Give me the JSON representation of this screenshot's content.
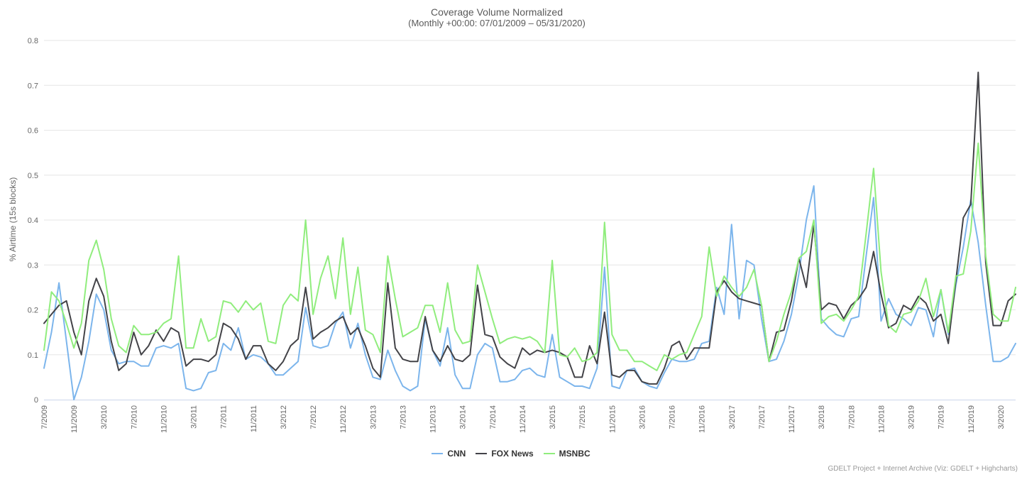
{
  "chart_data": {
    "type": "line",
    "title": "Coverage Volume Normalized",
    "subtitle": "(Monthly +00:00: 07/01/2009 – 05/31/2020)",
    "ylabel": "% Airtime (15s blocks)",
    "ylim": [
      0,
      0.8
    ],
    "ytick_step": 0.1,
    "ytick_labels": [
      "0",
      "0.1",
      "0.2",
      "0.3",
      "0.4",
      "0.5",
      "0.6",
      "0.7",
      "0.8"
    ],
    "grid": true,
    "legend_position": "bottom-center",
    "x_tick_every": 4,
    "axis_line_color": "#ccd6eb",
    "grid_color": "#e6e6e6",
    "label_color": "#666666",
    "categories": [
      "7/2009",
      "8/2009",
      "9/2009",
      "10/2009",
      "11/2009",
      "12/2009",
      "1/2010",
      "2/2010",
      "3/2010",
      "4/2010",
      "5/2010",
      "6/2010",
      "7/2010",
      "8/2010",
      "9/2010",
      "10/2010",
      "11/2010",
      "12/2010",
      "1/2011",
      "2/2011",
      "3/2011",
      "4/2011",
      "5/2011",
      "6/2011",
      "7/2011",
      "8/2011",
      "9/2011",
      "10/2011",
      "11/2011",
      "12/2011",
      "1/2012",
      "2/2012",
      "3/2012",
      "4/2012",
      "5/2012",
      "6/2012",
      "7/2012",
      "8/2012",
      "9/2012",
      "10/2012",
      "11/2012",
      "12/2012",
      "1/2013",
      "2/2013",
      "3/2013",
      "4/2013",
      "5/2013",
      "6/2013",
      "7/2013",
      "8/2013",
      "9/2013",
      "10/2013",
      "11/2013",
      "12/2013",
      "1/2014",
      "2/2014",
      "3/2014",
      "4/2014",
      "5/2014",
      "6/2014",
      "7/2014",
      "8/2014",
      "9/2014",
      "10/2014",
      "11/2014",
      "12/2014",
      "1/2015",
      "2/2015",
      "3/2015",
      "4/2015",
      "5/2015",
      "6/2015",
      "7/2015",
      "8/2015",
      "9/2015",
      "10/2015",
      "11/2015",
      "12/2015",
      "1/2016",
      "2/2016",
      "3/2016",
      "4/2016",
      "5/2016",
      "6/2016",
      "7/2016",
      "8/2016",
      "9/2016",
      "10/2016",
      "11/2016",
      "12/2016",
      "1/2017",
      "2/2017",
      "3/2017",
      "4/2017",
      "5/2017",
      "6/2017",
      "7/2017",
      "8/2017",
      "9/2017",
      "10/2017",
      "11/2017",
      "12/2017",
      "1/2018",
      "2/2018",
      "3/2018",
      "4/2018",
      "5/2018",
      "6/2018",
      "7/2018",
      "8/2018",
      "9/2018",
      "10/2018",
      "11/2018",
      "12/2018",
      "1/2019",
      "2/2019",
      "3/2019",
      "4/2019",
      "5/2019",
      "6/2019",
      "7/2019",
      "8/2019",
      "9/2019",
      "10/2019",
      "11/2019",
      "12/2019",
      "1/2020",
      "2/2020",
      "3/2020",
      "4/2020",
      "5/2020"
    ],
    "series": [
      {
        "name": "CNN",
        "color": "#7cb5ec",
        "values": [
          0.07,
          0.15,
          0.26,
          0.13,
          0.0,
          0.05,
          0.13,
          0.235,
          0.2,
          0.11,
          0.08,
          0.085,
          0.085,
          0.075,
          0.075,
          0.115,
          0.12,
          0.115,
          0.125,
          0.025,
          0.02,
          0.025,
          0.06,
          0.065,
          0.125,
          0.11,
          0.16,
          0.09,
          0.1,
          0.095,
          0.08,
          0.055,
          0.055,
          0.07,
          0.085,
          0.205,
          0.12,
          0.115,
          0.12,
          0.17,
          0.195,
          0.115,
          0.17,
          0.1,
          0.05,
          0.045,
          0.11,
          0.065,
          0.03,
          0.02,
          0.03,
          0.18,
          0.11,
          0.075,
          0.16,
          0.055,
          0.025,
          0.025,
          0.1,
          0.125,
          0.115,
          0.04,
          0.04,
          0.045,
          0.065,
          0.07,
          0.055,
          0.05,
          0.145,
          0.05,
          0.04,
          0.03,
          0.03,
          0.025,
          0.07,
          0.295,
          0.03,
          0.025,
          0.065,
          0.07,
          0.04,
          0.03,
          0.025,
          0.06,
          0.09,
          0.085,
          0.085,
          0.09,
          0.125,
          0.13,
          0.25,
          0.19,
          0.39,
          0.18,
          0.31,
          0.3,
          0.18,
          0.085,
          0.09,
          0.13,
          0.19,
          0.28,
          0.4,
          0.476,
          0.18,
          0.16,
          0.145,
          0.14,
          0.18,
          0.185,
          0.32,
          0.45,
          0.175,
          0.225,
          0.19,
          0.18,
          0.165,
          0.205,
          0.2,
          0.14,
          0.245,
          0.145,
          0.255,
          0.34,
          0.445,
          0.35,
          0.21,
          0.085,
          0.085,
          0.095,
          0.125
        ]
      },
      {
        "name": "FOX News",
        "color": "#434348",
        "values": [
          0.17,
          0.19,
          0.21,
          0.22,
          0.15,
          0.1,
          0.22,
          0.27,
          0.23,
          0.13,
          0.065,
          0.08,
          0.15,
          0.1,
          0.12,
          0.155,
          0.13,
          0.16,
          0.15,
          0.075,
          0.09,
          0.09,
          0.085,
          0.1,
          0.17,
          0.16,
          0.135,
          0.09,
          0.12,
          0.12,
          0.08,
          0.065,
          0.085,
          0.12,
          0.135,
          0.25,
          0.135,
          0.15,
          0.16,
          0.175,
          0.185,
          0.145,
          0.16,
          0.12,
          0.07,
          0.05,
          0.26,
          0.115,
          0.09,
          0.085,
          0.085,
          0.185,
          0.11,
          0.085,
          0.12,
          0.09,
          0.085,
          0.1,
          0.255,
          0.145,
          0.14,
          0.095,
          0.08,
          0.07,
          0.115,
          0.1,
          0.11,
          0.105,
          0.11,
          0.105,
          0.095,
          0.05,
          0.05,
          0.12,
          0.08,
          0.195,
          0.055,
          0.05,
          0.065,
          0.065,
          0.04,
          0.035,
          0.035,
          0.07,
          0.12,
          0.13,
          0.09,
          0.115,
          0.115,
          0.115,
          0.24,
          0.265,
          0.24,
          0.225,
          0.22,
          0.215,
          0.21,
          0.085,
          0.15,
          0.155,
          0.22,
          0.315,
          0.25,
          0.39,
          0.2,
          0.215,
          0.21,
          0.18,
          0.21,
          0.225,
          0.25,
          0.33,
          0.235,
          0.16,
          0.17,
          0.21,
          0.2,
          0.23,
          0.215,
          0.175,
          0.19,
          0.125,
          0.265,
          0.405,
          0.435,
          0.729,
          0.305,
          0.165,
          0.165,
          0.22,
          0.235
        ]
      },
      {
        "name": "MSNBC",
        "color": "#90ed7d",
        "values": [
          0.11,
          0.24,
          0.22,
          0.17,
          0.115,
          0.17,
          0.31,
          0.355,
          0.29,
          0.18,
          0.12,
          0.105,
          0.165,
          0.145,
          0.145,
          0.15,
          0.17,
          0.18,
          0.32,
          0.115,
          0.115,
          0.18,
          0.13,
          0.14,
          0.22,
          0.215,
          0.195,
          0.22,
          0.2,
          0.215,
          0.13,
          0.125,
          0.21,
          0.235,
          0.22,
          0.4,
          0.19,
          0.27,
          0.32,
          0.225,
          0.36,
          0.19,
          0.295,
          0.155,
          0.145,
          0.105,
          0.32,
          0.225,
          0.14,
          0.15,
          0.16,
          0.21,
          0.21,
          0.15,
          0.26,
          0.155,
          0.125,
          0.13,
          0.3,
          0.24,
          0.18,
          0.125,
          0.135,
          0.14,
          0.135,
          0.14,
          0.13,
          0.105,
          0.31,
          0.1,
          0.095,
          0.115,
          0.085,
          0.09,
          0.105,
          0.395,
          0.145,
          0.11,
          0.11,
          0.085,
          0.085,
          0.075,
          0.065,
          0.1,
          0.09,
          0.1,
          0.105,
          0.145,
          0.185,
          0.34,
          0.23,
          0.275,
          0.25,
          0.23,
          0.25,
          0.29,
          0.21,
          0.085,
          0.13,
          0.19,
          0.24,
          0.315,
          0.33,
          0.4,
          0.17,
          0.185,
          0.19,
          0.175,
          0.2,
          0.23,
          0.37,
          0.515,
          0.285,
          0.165,
          0.15,
          0.19,
          0.195,
          0.22,
          0.27,
          0.185,
          0.245,
          0.15,
          0.275,
          0.28,
          0.375,
          0.571,
          0.32,
          0.19,
          0.175,
          0.175,
          0.25
        ]
      }
    ],
    "credit": "GDELT Project + Internet Archive (Viz: GDELT + Highcharts)"
  }
}
